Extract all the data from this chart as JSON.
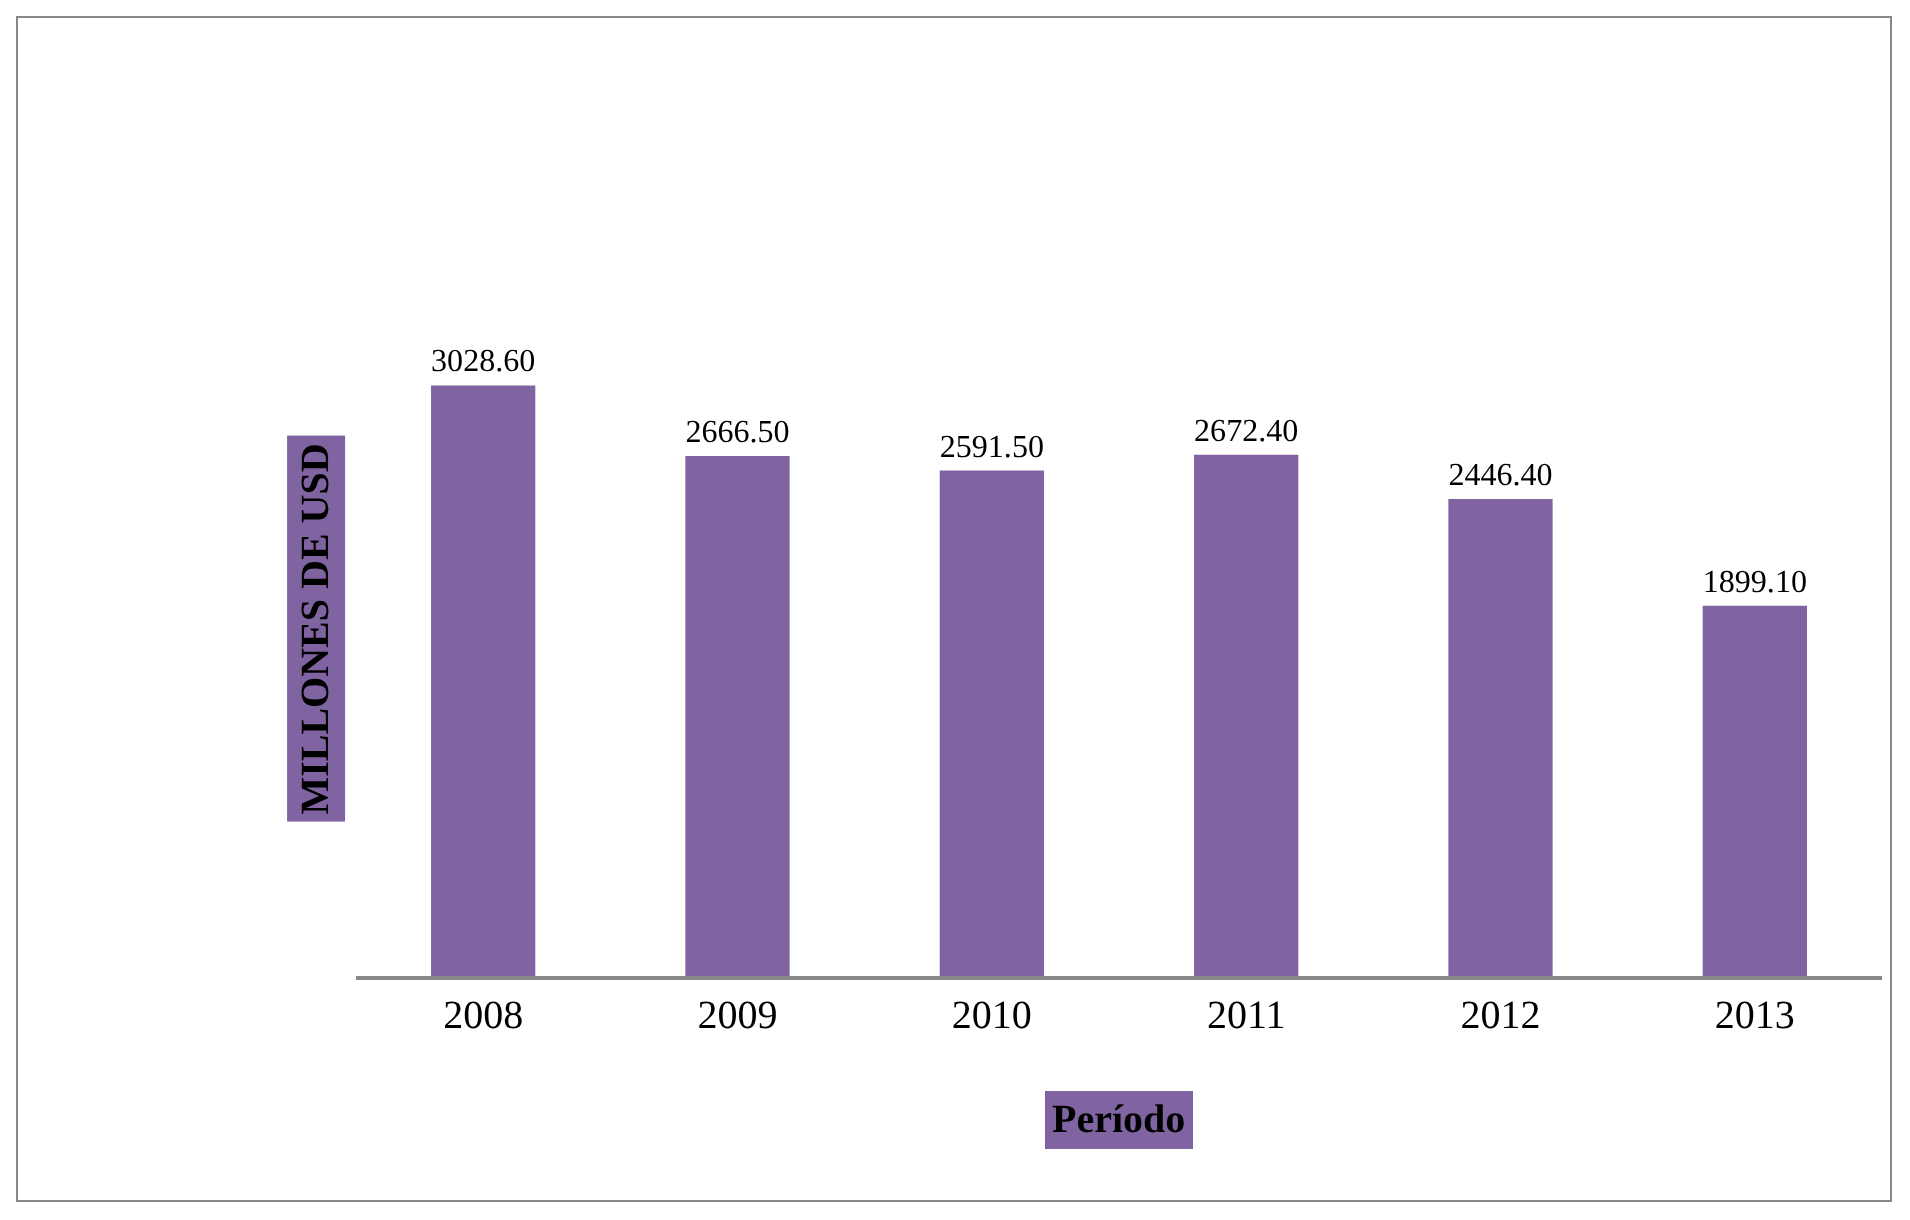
{
  "chart_data": {
    "type": "bar",
    "xlabel": "Período",
    "ylabel": "MILLONES DE USD",
    "categories": [
      "2008",
      "2009",
      "2010",
      "2011",
      "2012",
      "2013"
    ],
    "values": [
      3028.6,
      2666.5,
      2591.5,
      2672.4,
      2446.4,
      1899.1
    ],
    "value_labels": [
      "3028.60",
      "2666.50",
      "2591.50",
      "2672.40",
      "2446.40",
      "1899.10"
    ],
    "color": "#8064a2",
    "tick_labels": "x"
  }
}
